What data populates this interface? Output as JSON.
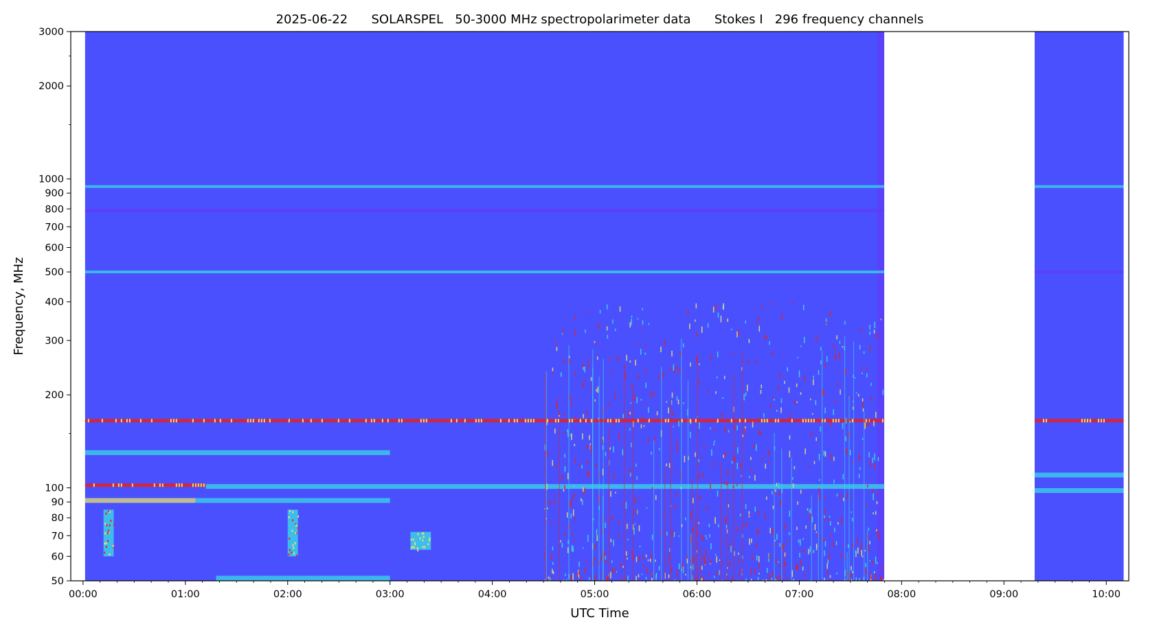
{
  "chart_data": {
    "type": "heatmap",
    "title": "2025-06-22      SOLARSPEL   50-3000 MHz spectropolarimeter data      Stokes I   296 frequency channels",
    "xlabel": "UTC Time",
    "ylabel": "Frequency, MHz",
    "yscale": "log",
    "xlim_hours": [
      -0.12,
      10.22
    ],
    "ylim": [
      50,
      3000
    ],
    "x_ticks": [
      {
        "hour": 0,
        "label": "00:00"
      },
      {
        "hour": 1,
        "label": "01:00"
      },
      {
        "hour": 2,
        "label": "02:00"
      },
      {
        "hour": 3,
        "label": "03:00"
      },
      {
        "hour": 4,
        "label": "04:00"
      },
      {
        "hour": 5,
        "label": "05:00"
      },
      {
        "hour": 6,
        "label": "06:00"
      },
      {
        "hour": 7,
        "label": "07:00"
      },
      {
        "hour": 8,
        "label": "08:00"
      },
      {
        "hour": 9,
        "label": "09:00"
      },
      {
        "hour": 10,
        "label": "10:00"
      }
    ],
    "y_ticks": [
      {
        "value": 50,
        "label": "50"
      },
      {
        "value": 60,
        "label": "60"
      },
      {
        "value": 70,
        "label": "70"
      },
      {
        "value": 80,
        "label": "80"
      },
      {
        "value": 90,
        "label": "90"
      },
      {
        "value": 100,
        "label": "100"
      },
      {
        "value": 200,
        "label": "200"
      },
      {
        "value": 300,
        "label": "300"
      },
      {
        "value": 400,
        "label": "400"
      },
      {
        "value": 500,
        "label": "500"
      },
      {
        "value": 600,
        "label": "600"
      },
      {
        "value": 700,
        "label": "700"
      },
      {
        "value": 800,
        "label": "800"
      },
      {
        "value": 900,
        "label": "900"
      },
      {
        "value": 1000,
        "label": "1000"
      },
      {
        "value": 2000,
        "label": "2000"
      },
      {
        "value": 3000,
        "label": "3000"
      }
    ],
    "y_minor_ticks": [
      150,
      1500,
      2500
    ],
    "colormap": "rainbow",
    "colors": {
      "background": "#4a50fe",
      "dim": "#5f3cf8",
      "cyan": "#3ad8e6",
      "yellow": "#e6e070",
      "red": "#e62020"
    },
    "data_segments": [
      {
        "start_hour": 0.02,
        "end_hour": 7.83
      },
      {
        "start_hour": 9.3,
        "end_hour": 10.17
      }
    ],
    "bands": [
      {
        "freq": 945,
        "start_hour": 0.02,
        "end_hour": 7.83,
        "intensity": "cyan"
      },
      {
        "freq": 945,
        "start_hour": 9.3,
        "end_hour": 10.17,
        "intensity": "cyan"
      },
      {
        "freq": 790,
        "start_hour": 0.02,
        "end_hour": 7.83,
        "intensity": "dim"
      },
      {
        "freq": 500,
        "start_hour": 0.02,
        "end_hour": 7.83,
        "intensity": "cyan"
      },
      {
        "freq": 500,
        "start_hour": 9.3,
        "end_hour": 10.17,
        "intensity": "dim"
      },
      {
        "freq": 165,
        "start_hour": 0.02,
        "end_hour": 7.83,
        "intensity": "red"
      },
      {
        "freq": 165,
        "start_hour": 9.3,
        "end_hour": 10.17,
        "intensity": "red"
      },
      {
        "freq": 130,
        "start_hour": 0.02,
        "end_hour": 3.0,
        "intensity": "cyan"
      },
      {
        "freq": 102,
        "start_hour": 0.02,
        "end_hour": 1.2,
        "intensity": "red"
      },
      {
        "freq": 101,
        "start_hour": 1.2,
        "end_hour": 7.83,
        "intensity": "cyan"
      },
      {
        "freq": 91,
        "start_hour": 0.02,
        "end_hour": 1.1,
        "intensity": "yellow"
      },
      {
        "freq": 91,
        "start_hour": 1.1,
        "end_hour": 3.0,
        "intensity": "cyan"
      },
      {
        "freq": 51,
        "start_hour": 1.3,
        "end_hour": 3.0,
        "intensity": "cyan"
      },
      {
        "freq": 98,
        "start_hour": 9.3,
        "end_hour": 10.17,
        "intensity": "cyan"
      },
      {
        "freq": 110,
        "start_hour": 9.3,
        "end_hour": 10.17,
        "intensity": "cyan"
      }
    ],
    "bursts": [
      {
        "start_hour": 0.2,
        "end_hour": 0.3,
        "freq_low": 60,
        "freq_high": 85,
        "intensity": "red"
      },
      {
        "start_hour": 2.0,
        "end_hour": 2.1,
        "freq_low": 60,
        "freq_high": 85,
        "intensity": "red"
      },
      {
        "start_hour": 3.2,
        "end_hour": 3.4,
        "freq_low": 63,
        "freq_high": 72,
        "intensity": "yellow"
      },
      {
        "start_hour": 4.5,
        "end_hour": 7.83,
        "freq_low": 50,
        "freq_high": 400,
        "intensity": "red"
      }
    ]
  }
}
